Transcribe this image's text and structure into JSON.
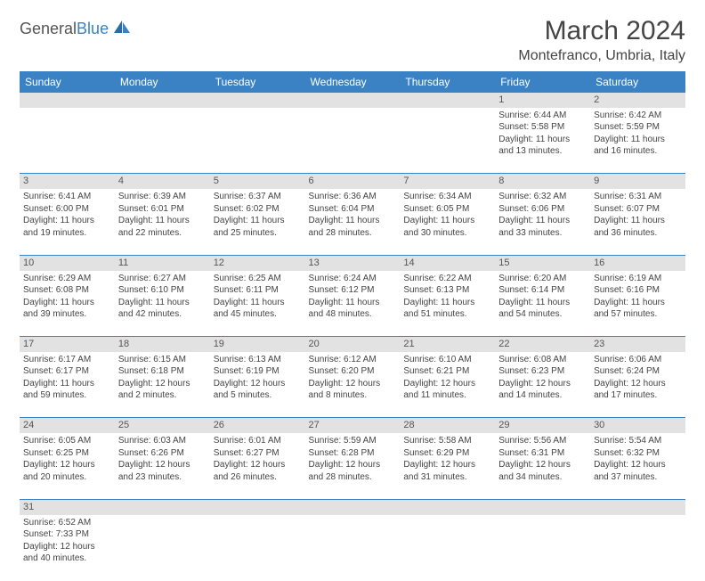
{
  "logo": {
    "text1": "General",
    "text2": "Blue"
  },
  "title": "March 2024",
  "location": "Montefranco, Umbria, Italy",
  "colors": {
    "header_bg": "#3b82c4",
    "header_fg": "#ffffff",
    "daynum_bg": "#e2e2e2",
    "text": "#444444",
    "border": "#3b82c4"
  },
  "weekdays": [
    "Sunday",
    "Monday",
    "Tuesday",
    "Wednesday",
    "Thursday",
    "Friday",
    "Saturday"
  ],
  "weeks": [
    [
      null,
      null,
      null,
      null,
      null,
      {
        "n": "1",
        "sr": "Sunrise: 6:44 AM",
        "ss": "Sunset: 5:58 PM",
        "d1": "Daylight: 11 hours",
        "d2": "and 13 minutes."
      },
      {
        "n": "2",
        "sr": "Sunrise: 6:42 AM",
        "ss": "Sunset: 5:59 PM",
        "d1": "Daylight: 11 hours",
        "d2": "and 16 minutes."
      }
    ],
    [
      {
        "n": "3",
        "sr": "Sunrise: 6:41 AM",
        "ss": "Sunset: 6:00 PM",
        "d1": "Daylight: 11 hours",
        "d2": "and 19 minutes."
      },
      {
        "n": "4",
        "sr": "Sunrise: 6:39 AM",
        "ss": "Sunset: 6:01 PM",
        "d1": "Daylight: 11 hours",
        "d2": "and 22 minutes."
      },
      {
        "n": "5",
        "sr": "Sunrise: 6:37 AM",
        "ss": "Sunset: 6:02 PM",
        "d1": "Daylight: 11 hours",
        "d2": "and 25 minutes."
      },
      {
        "n": "6",
        "sr": "Sunrise: 6:36 AM",
        "ss": "Sunset: 6:04 PM",
        "d1": "Daylight: 11 hours",
        "d2": "and 28 minutes."
      },
      {
        "n": "7",
        "sr": "Sunrise: 6:34 AM",
        "ss": "Sunset: 6:05 PM",
        "d1": "Daylight: 11 hours",
        "d2": "and 30 minutes."
      },
      {
        "n": "8",
        "sr": "Sunrise: 6:32 AM",
        "ss": "Sunset: 6:06 PM",
        "d1": "Daylight: 11 hours",
        "d2": "and 33 minutes."
      },
      {
        "n": "9",
        "sr": "Sunrise: 6:31 AM",
        "ss": "Sunset: 6:07 PM",
        "d1": "Daylight: 11 hours",
        "d2": "and 36 minutes."
      }
    ],
    [
      {
        "n": "10",
        "sr": "Sunrise: 6:29 AM",
        "ss": "Sunset: 6:08 PM",
        "d1": "Daylight: 11 hours",
        "d2": "and 39 minutes."
      },
      {
        "n": "11",
        "sr": "Sunrise: 6:27 AM",
        "ss": "Sunset: 6:10 PM",
        "d1": "Daylight: 11 hours",
        "d2": "and 42 minutes."
      },
      {
        "n": "12",
        "sr": "Sunrise: 6:25 AM",
        "ss": "Sunset: 6:11 PM",
        "d1": "Daylight: 11 hours",
        "d2": "and 45 minutes."
      },
      {
        "n": "13",
        "sr": "Sunrise: 6:24 AM",
        "ss": "Sunset: 6:12 PM",
        "d1": "Daylight: 11 hours",
        "d2": "and 48 minutes."
      },
      {
        "n": "14",
        "sr": "Sunrise: 6:22 AM",
        "ss": "Sunset: 6:13 PM",
        "d1": "Daylight: 11 hours",
        "d2": "and 51 minutes."
      },
      {
        "n": "15",
        "sr": "Sunrise: 6:20 AM",
        "ss": "Sunset: 6:14 PM",
        "d1": "Daylight: 11 hours",
        "d2": "and 54 minutes."
      },
      {
        "n": "16",
        "sr": "Sunrise: 6:19 AM",
        "ss": "Sunset: 6:16 PM",
        "d1": "Daylight: 11 hours",
        "d2": "and 57 minutes."
      }
    ],
    [
      {
        "n": "17",
        "sr": "Sunrise: 6:17 AM",
        "ss": "Sunset: 6:17 PM",
        "d1": "Daylight: 11 hours",
        "d2": "and 59 minutes."
      },
      {
        "n": "18",
        "sr": "Sunrise: 6:15 AM",
        "ss": "Sunset: 6:18 PM",
        "d1": "Daylight: 12 hours",
        "d2": "and 2 minutes."
      },
      {
        "n": "19",
        "sr": "Sunrise: 6:13 AM",
        "ss": "Sunset: 6:19 PM",
        "d1": "Daylight: 12 hours",
        "d2": "and 5 minutes."
      },
      {
        "n": "20",
        "sr": "Sunrise: 6:12 AM",
        "ss": "Sunset: 6:20 PM",
        "d1": "Daylight: 12 hours",
        "d2": "and 8 minutes."
      },
      {
        "n": "21",
        "sr": "Sunrise: 6:10 AM",
        "ss": "Sunset: 6:21 PM",
        "d1": "Daylight: 12 hours",
        "d2": "and 11 minutes."
      },
      {
        "n": "22",
        "sr": "Sunrise: 6:08 AM",
        "ss": "Sunset: 6:23 PM",
        "d1": "Daylight: 12 hours",
        "d2": "and 14 minutes."
      },
      {
        "n": "23",
        "sr": "Sunrise: 6:06 AM",
        "ss": "Sunset: 6:24 PM",
        "d1": "Daylight: 12 hours",
        "d2": "and 17 minutes."
      }
    ],
    [
      {
        "n": "24",
        "sr": "Sunrise: 6:05 AM",
        "ss": "Sunset: 6:25 PM",
        "d1": "Daylight: 12 hours",
        "d2": "and 20 minutes."
      },
      {
        "n": "25",
        "sr": "Sunrise: 6:03 AM",
        "ss": "Sunset: 6:26 PM",
        "d1": "Daylight: 12 hours",
        "d2": "and 23 minutes."
      },
      {
        "n": "26",
        "sr": "Sunrise: 6:01 AM",
        "ss": "Sunset: 6:27 PM",
        "d1": "Daylight: 12 hours",
        "d2": "and 26 minutes."
      },
      {
        "n": "27",
        "sr": "Sunrise: 5:59 AM",
        "ss": "Sunset: 6:28 PM",
        "d1": "Daylight: 12 hours",
        "d2": "and 28 minutes."
      },
      {
        "n": "28",
        "sr": "Sunrise: 5:58 AM",
        "ss": "Sunset: 6:29 PM",
        "d1": "Daylight: 12 hours",
        "d2": "and 31 minutes."
      },
      {
        "n": "29",
        "sr": "Sunrise: 5:56 AM",
        "ss": "Sunset: 6:31 PM",
        "d1": "Daylight: 12 hours",
        "d2": "and 34 minutes."
      },
      {
        "n": "30",
        "sr": "Sunrise: 5:54 AM",
        "ss": "Sunset: 6:32 PM",
        "d1": "Daylight: 12 hours",
        "d2": "and 37 minutes."
      }
    ],
    [
      {
        "n": "31",
        "sr": "Sunrise: 6:52 AM",
        "ss": "Sunset: 7:33 PM",
        "d1": "Daylight: 12 hours",
        "d2": "and 40 minutes."
      },
      null,
      null,
      null,
      null,
      null,
      null
    ]
  ]
}
